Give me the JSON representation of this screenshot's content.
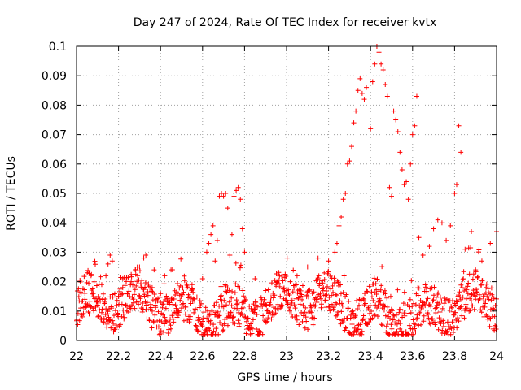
{
  "chart_data": {
    "type": "scatter",
    "title": "Day 247 of 2024, Rate Of TEC Index for receiver kvtx",
    "xlabel": "GPS time / hours",
    "ylabel": "ROTI / TECUs",
    "xlim": [
      22,
      24
    ],
    "ylim": [
      0,
      0.1
    ],
    "x_ticks": [
      "22",
      "22.2",
      "22.4",
      "22.6",
      "22.8",
      "23",
      "23.2",
      "23.4",
      "23.6",
      "23.8",
      "24"
    ],
    "y_ticks": [
      "0",
      "0.01",
      "0.02",
      "0.03",
      "0.04",
      "0.05",
      "0.06",
      "0.07",
      "0.08",
      "0.09",
      "0.1"
    ],
    "grid": true,
    "marker": "plus",
    "color": "#ff0000",
    "series": [
      {
        "points": [
          [
            22.02,
            0.011
          ],
          [
            22.04,
            0.014
          ],
          [
            22.06,
            0.009
          ],
          [
            22.08,
            0.016
          ],
          [
            22.1,
            0.012
          ],
          [
            22.12,
            0.019
          ],
          [
            22.14,
            0.022
          ],
          [
            22.15,
            0.026
          ],
          [
            22.16,
            0.029
          ],
          [
            22.17,
            0.027
          ],
          [
            22.2,
            0.015
          ],
          [
            22.22,
            0.018
          ],
          [
            22.24,
            0.01
          ],
          [
            22.26,
            0.02
          ],
          [
            22.28,
            0.024
          ],
          [
            22.3,
            0.025
          ],
          [
            22.32,
            0.028
          ],
          [
            22.33,
            0.029
          ],
          [
            22.36,
            0.018
          ],
          [
            22.4,
            0.013
          ],
          [
            22.42,
            0.022
          ],
          [
            22.45,
            0.024
          ],
          [
            22.48,
            0.016
          ],
          [
            22.5,
            0.011
          ],
          [
            22.55,
            0.019
          ],
          [
            22.6,
            0.021
          ],
          [
            22.62,
            0.03
          ],
          [
            22.63,
            0.033
          ],
          [
            22.64,
            0.036
          ],
          [
            22.65,
            0.039
          ],
          [
            22.66,
            0.027
          ],
          [
            22.67,
            0.034
          ],
          [
            22.68,
            0.049
          ],
          [
            22.69,
            0.05
          ],
          [
            22.7,
            0.049
          ],
          [
            22.71,
            0.05
          ],
          [
            22.72,
            0.045
          ],
          [
            22.73,
            0.029
          ],
          [
            22.74,
            0.036
          ],
          [
            22.75,
            0.049
          ],
          [
            22.76,
            0.051
          ],
          [
            22.77,
            0.052
          ],
          [
            22.78,
            0.048
          ],
          [
            22.79,
            0.038
          ],
          [
            22.8,
            0.03
          ],
          [
            22.85,
            0.021
          ],
          [
            22.9,
            0.017
          ],
          [
            22.95,
            0.019
          ],
          [
            23.0,
            0.017
          ],
          [
            23.05,
            0.022
          ],
          [
            23.1,
            0.025
          ],
          [
            23.15,
            0.028
          ],
          [
            23.2,
            0.027
          ],
          [
            23.23,
            0.03
          ],
          [
            23.24,
            0.033
          ],
          [
            23.25,
            0.039
          ],
          [
            23.26,
            0.042
          ],
          [
            23.27,
            0.048
          ],
          [
            23.28,
            0.05
          ],
          [
            23.29,
            0.06
          ],
          [
            23.3,
            0.061
          ],
          [
            23.31,
            0.066
          ],
          [
            23.32,
            0.074
          ],
          [
            23.33,
            0.078
          ],
          [
            23.34,
            0.085
          ],
          [
            23.35,
            0.089
          ],
          [
            23.36,
            0.084
          ],
          [
            23.37,
            0.082
          ],
          [
            23.38,
            0.086
          ],
          [
            23.4,
            0.072
          ],
          [
            23.41,
            0.088
          ],
          [
            23.42,
            0.094
          ],
          [
            23.43,
            0.1
          ],
          [
            23.44,
            0.098
          ],
          [
            23.45,
            0.094
          ],
          [
            23.46,
            0.092
          ],
          [
            23.47,
            0.087
          ],
          [
            23.48,
            0.083
          ],
          [
            23.49,
            0.052
          ],
          [
            23.5,
            0.049
          ],
          [
            23.51,
            0.078
          ],
          [
            23.52,
            0.075
          ],
          [
            23.53,
            0.071
          ],
          [
            23.54,
            0.064
          ],
          [
            23.55,
            0.058
          ],
          [
            23.56,
            0.053
          ],
          [
            23.57,
            0.054
          ],
          [
            23.58,
            0.048
          ],
          [
            23.59,
            0.06
          ],
          [
            23.6,
            0.07
          ],
          [
            23.61,
            0.073
          ],
          [
            23.62,
            0.083
          ],
          [
            23.63,
            0.035
          ],
          [
            23.65,
            0.029
          ],
          [
            23.68,
            0.032
          ],
          [
            23.7,
            0.038
          ],
          [
            23.72,
            0.041
          ],
          [
            23.74,
            0.04
          ],
          [
            23.76,
            0.034
          ],
          [
            23.78,
            0.039
          ],
          [
            23.8,
            0.05
          ],
          [
            23.81,
            0.053
          ],
          [
            23.82,
            0.073
          ],
          [
            23.83,
            0.064
          ],
          [
            23.85,
            0.031
          ],
          [
            23.88,
            0.037
          ],
          [
            23.9,
            0.024
          ],
          [
            23.93,
            0.027
          ],
          [
            23.95,
            0.018
          ],
          [
            23.97,
            0.033
          ],
          [
            24.0,
            0.037
          ]
        ]
      }
    ]
  }
}
